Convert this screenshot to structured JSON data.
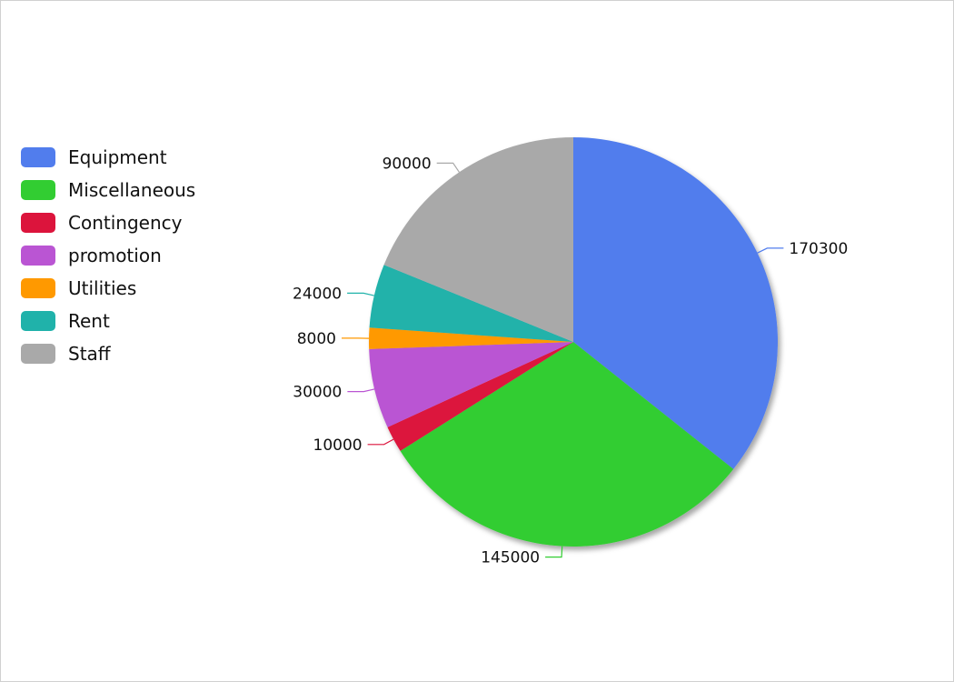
{
  "chart_data": {
    "type": "pie",
    "categories": [
      "Equipment",
      "Miscellaneous",
      "Contingency",
      "promotion",
      "Utilities",
      "Rent",
      "Staff"
    ],
    "values": [
      170300,
      145000,
      10000,
      30000,
      8000,
      24000,
      90000
    ],
    "colors": [
      "#517ded",
      "#32cd32",
      "#dc143c",
      "#ba55d3",
      "#ff9900",
      "#20b2aa",
      "#a9a9a9"
    ],
    "data_labels": [
      "170300",
      "145000",
      "10000",
      "30000",
      "8000",
      "24000",
      "90000"
    ],
    "legend_position": "left",
    "start_angle_deg": 0,
    "direction": "clockwise"
  }
}
